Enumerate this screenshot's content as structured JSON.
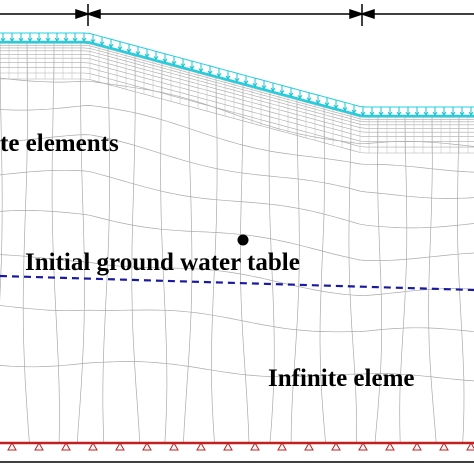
{
  "labels": {
    "finite": "te elements",
    "water_table": "Initial ground water table",
    "infinite": "Infinite eleme"
  }
}
